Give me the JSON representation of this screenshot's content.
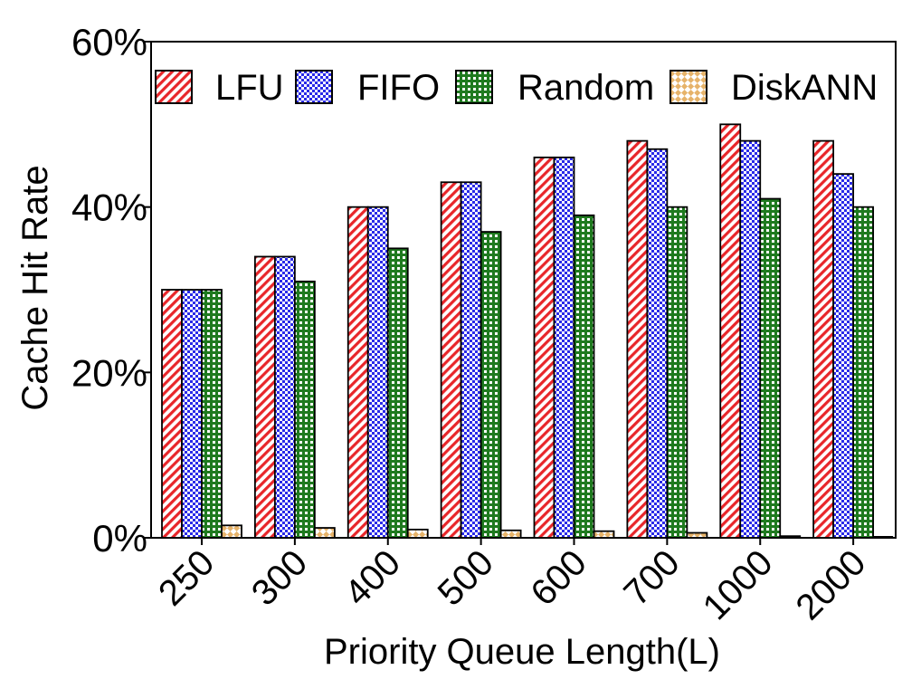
{
  "chart_data": {
    "type": "bar",
    "title": "",
    "xlabel": "Priority Queue Length(L)",
    "ylabel": "Cache Hit Rate",
    "ylim": [
      0,
      60
    ],
    "yticks": [
      "0%",
      "20%",
      "40%",
      "60%"
    ],
    "ytick_values": [
      0,
      20,
      40,
      60
    ],
    "categories": [
      "250",
      "300",
      "400",
      "500",
      "600",
      "700",
      "1000",
      "2000"
    ],
    "series": [
      {
        "name": "LFU",
        "values": [
          30,
          34,
          40,
          43,
          46,
          48,
          50,
          48
        ],
        "color": "#e8262a",
        "pattern": "diagonal-hatch"
      },
      {
        "name": "FIFO",
        "values": [
          30,
          34,
          40,
          43,
          46,
          47,
          48,
          44
        ],
        "color": "#2a2ae8",
        "pattern": "checker"
      },
      {
        "name": "Random",
        "values": [
          30,
          31,
          35,
          37,
          39,
          40,
          41,
          40
        ],
        "color": "#1f7a1f",
        "pattern": "grid"
      },
      {
        "name": "DiskANN",
        "values": [
          1.5,
          1.2,
          1.0,
          0.9,
          0.8,
          0.6,
          0.2,
          0.0
        ],
        "color": "#e6b36a",
        "pattern": "diamond"
      }
    ],
    "legend_position": "top",
    "grid": false
  }
}
